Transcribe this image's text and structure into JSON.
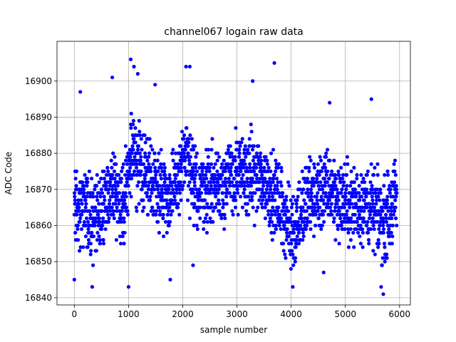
{
  "chart_data": {
    "type": "scatter",
    "title": "channel067 logain raw data",
    "xlabel": "sample number",
    "ylabel": "ADC Code",
    "xlim": [
      -320,
      6200
    ],
    "ylim": [
      16838,
      16911
    ],
    "xticks": [
      0,
      1000,
      2000,
      3000,
      4000,
      5000,
      6000
    ],
    "xtick_labels": [
      "0",
      "1000",
      "2000",
      "3000",
      "4000",
      "5000",
      "6000"
    ],
    "yticks": [
      16840,
      16850,
      16860,
      16870,
      16880,
      16890,
      16900
    ],
    "ytick_labels": [
      "16840",
      "16850",
      "16860",
      "16870",
      "16880",
      "16890",
      "16900"
    ],
    "grid": true,
    "marker_color": "#0000ff",
    "n_samples": 5950,
    "x_range": [
      0,
      5949
    ],
    "y_range": [
      16841,
      16906
    ],
    "mean_profile": [
      {
        "x": 0,
        "y": 16867
      },
      {
        "x": 200,
        "y": 16863
      },
      {
        "x": 400,
        "y": 16862
      },
      {
        "x": 700,
        "y": 16871
      },
      {
        "x": 900,
        "y": 16866
      },
      {
        "x": 1050,
        "y": 16880
      },
      {
        "x": 1200,
        "y": 16876
      },
      {
        "x": 1500,
        "y": 16872
      },
      {
        "x": 1800,
        "y": 16867
      },
      {
        "x": 2050,
        "y": 16880
      },
      {
        "x": 2200,
        "y": 16870
      },
      {
        "x": 2600,
        "y": 16871
      },
      {
        "x": 3000,
        "y": 16874
      },
      {
        "x": 3400,
        "y": 16874
      },
      {
        "x": 3800,
        "y": 16866
      },
      {
        "x": 4000,
        "y": 16858
      },
      {
        "x": 4300,
        "y": 16867
      },
      {
        "x": 4700,
        "y": 16870
      },
      {
        "x": 5000,
        "y": 16866
      },
      {
        "x": 5400,
        "y": 16866
      },
      {
        "x": 5700,
        "y": 16861
      },
      {
        "x": 5949,
        "y": 16868
      }
    ],
    "noise_spread": 7,
    "points_rendered": 2000,
    "extreme_points": [
      {
        "x": 1040,
        "y": 16906
      },
      {
        "x": 3690,
        "y": 16905
      },
      {
        "x": 2060,
        "y": 16904
      },
      {
        "x": 2130,
        "y": 16904
      },
      {
        "x": 1100,
        "y": 16904
      },
      {
        "x": 1170,
        "y": 16902
      },
      {
        "x": 700,
        "y": 16901
      },
      {
        "x": 3290,
        "y": 16900
      },
      {
        "x": 1490,
        "y": 16899
      },
      {
        "x": 110,
        "y": 16897
      },
      {
        "x": 4710,
        "y": 16894
      },
      {
        "x": 5480,
        "y": 16895
      },
      {
        "x": 1000,
        "y": 16843
      },
      {
        "x": 330,
        "y": 16843
      },
      {
        "x": 4030,
        "y": 16843
      },
      {
        "x": 5660,
        "y": 16843
      },
      {
        "x": 5700,
        "y": 16841
      },
      {
        "x": 1770,
        "y": 16845
      },
      {
        "x": 0,
        "y": 16845
      },
      {
        "x": 2190,
        "y": 16849
      },
      {
        "x": 4600,
        "y": 16847
      }
    ]
  }
}
